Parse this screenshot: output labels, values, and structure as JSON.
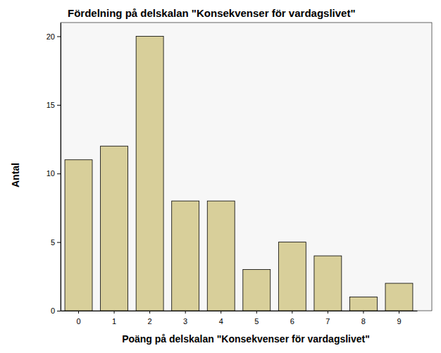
{
  "chart_data": {
    "type": "bar",
    "title": "Fördelning på delskalan \"Konsekvenser för vardagslivet\"",
    "x_label": "Poäng på delskalan \"Konsekvenser för vardagslivet\"",
    "y_label": "Antal",
    "categories": [
      "0",
      "1",
      "2",
      "3",
      "4",
      "5",
      "6",
      "7",
      "8",
      "9"
    ],
    "values": [
      11,
      12,
      20,
      8,
      8,
      3,
      5,
      4,
      1,
      2
    ],
    "color": "#d8cf9a",
    "ylim": [
      0,
      21
    ],
    "yticks": [
      0,
      5,
      10,
      15,
      20
    ],
    "grid": false
  }
}
